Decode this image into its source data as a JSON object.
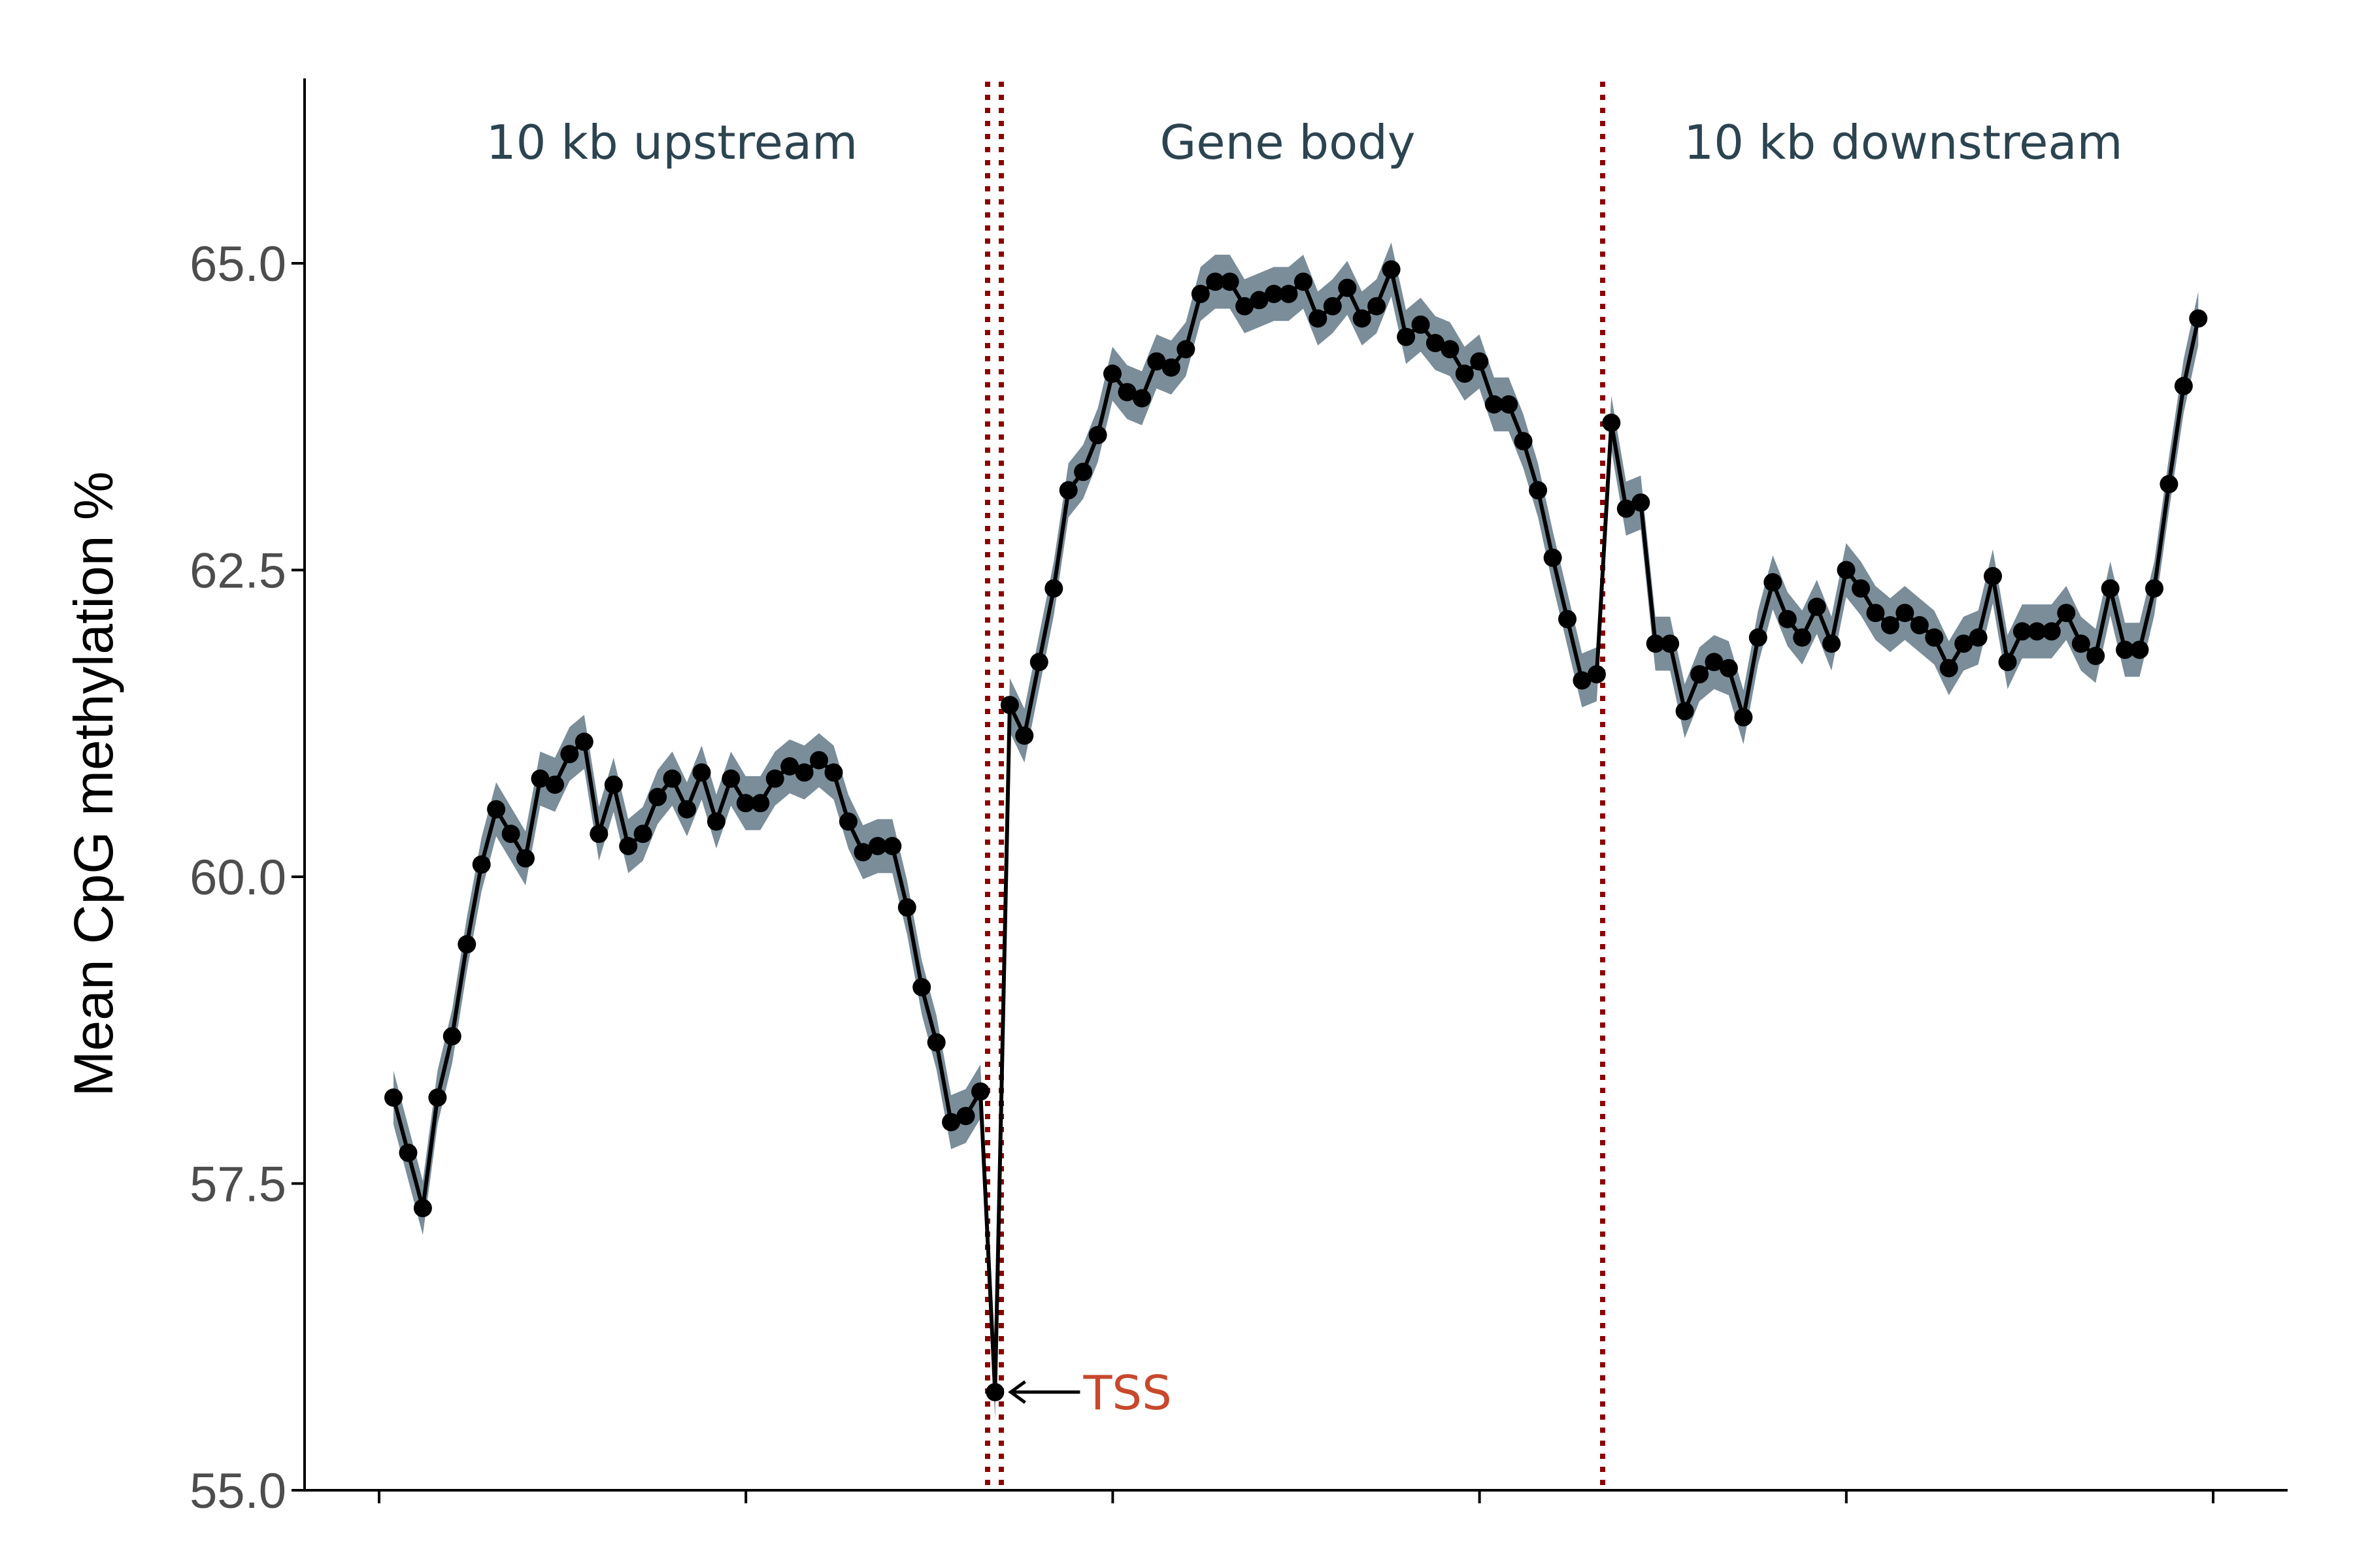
{
  "chart_data": {
    "type": "line",
    "title": "",
    "xlabel": "",
    "ylabel": "Mean CpG methylation %",
    "ylim": [
      55.0,
      66.5
    ],
    "yticks": [
      "55.0",
      "57.5",
      "60.0",
      "62.5",
      "65.0"
    ],
    "x_ticks_count": 6,
    "grid": false,
    "legend": "none",
    "series": [
      {
        "values": [
          58.2,
          57.75,
          57.3,
          58.2,
          58.7,
          59.45,
          60.1,
          60.55,
          60.35,
          60.15,
          60.8,
          60.75,
          61.0,
          61.1,
          60.35,
          60.75,
          60.25,
          60.35,
          60.65,
          60.8,
          60.55,
          60.85,
          60.45,
          60.8,
          60.6,
          60.6,
          60.8,
          60.9,
          60.85,
          60.95,
          60.85,
          60.45,
          60.2,
          60.25,
          60.25,
          59.75,
          59.1,
          58.65,
          58.0,
          58.05,
          58.25,
          55.8,
          61.4,
          61.15,
          61.75,
          62.35,
          63.15,
          63.3,
          63.6,
          64.1,
          63.95,
          63.9,
          64.2,
          64.15,
          64.3,
          64.75,
          64.85,
          64.85,
          64.65,
          64.7,
          64.75,
          64.75,
          64.85,
          64.55,
          64.65,
          64.8,
          64.55,
          64.65,
          64.95,
          64.4,
          64.5,
          64.35,
          64.3,
          64.1,
          64.2,
          63.85,
          63.85,
          63.55,
          63.15,
          62.6,
          62.1,
          61.6,
          61.65,
          63.7,
          63.0,
          63.05,
          61.9,
          61.9,
          61.35,
          61.65,
          61.75,
          61.7,
          61.3,
          61.95,
          62.4,
          62.1,
          61.95,
          62.2,
          61.9,
          62.5,
          62.35,
          62.15,
          62.05,
          62.15,
          62.05,
          61.95,
          61.7,
          61.9,
          61.95,
          62.45,
          61.75,
          62.0,
          62.0,
          62.0,
          62.15,
          61.9,
          61.8,
          62.35,
          61.85,
          61.85,
          62.35,
          63.2,
          64.0,
          64.55
        ]
      }
    ],
    "regions": [
      {
        "label": "10 kb upstream"
      },
      {
        "label": "Gene body"
      },
      {
        "label": "10 kb downstream"
      }
    ],
    "annotations": [
      {
        "label": "TSS",
        "point_index": 41
      }
    ],
    "colors": {
      "line": "#000000",
      "band": "#7a8d99",
      "points": "#000000",
      "boundary": "#8b0000",
      "region_text": "#2c4450",
      "tss_text": "#c8482c",
      "axis": "#000000"
    }
  }
}
